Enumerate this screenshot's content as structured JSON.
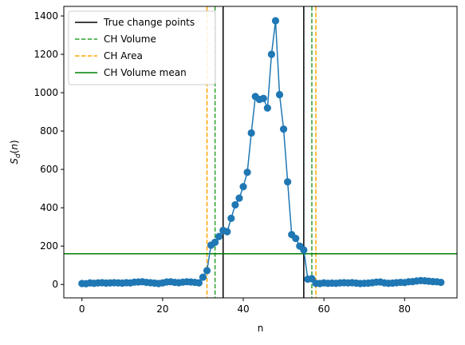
{
  "chart_data": {
    "type": "line",
    "xlabel": "n",
    "ylabel": "S_d(n)",
    "xlim": [
      -4.5,
      93
    ],
    "ylim": [
      -70,
      1450
    ],
    "xticks": [
      0,
      20,
      40,
      60,
      80
    ],
    "yticks": [
      0,
      200,
      400,
      600,
      800,
      1000,
      1200,
      1400
    ],
    "grid": false,
    "legend_position": "top-left",
    "series": [
      {
        "color": "#1f77b4",
        "marker": "circle",
        "x": [
          0,
          1,
          2,
          3,
          4,
          5,
          6,
          7,
          8,
          9,
          10,
          11,
          12,
          13,
          14,
          15,
          16,
          17,
          18,
          19,
          20,
          21,
          22,
          23,
          24,
          25,
          26,
          27,
          28,
          29,
          30,
          31,
          32,
          33,
          34,
          35,
          36,
          37,
          38,
          39,
          40,
          41,
          42,
          43,
          44,
          45,
          46,
          47,
          48,
          49,
          50,
          51,
          52,
          53,
          54,
          55,
          56,
          57,
          58,
          59,
          60,
          61,
          62,
          63,
          64,
          65,
          66,
          67,
          68,
          69,
          70,
          71,
          72,
          73,
          74,
          75,
          76,
          77,
          78,
          79,
          80,
          81,
          82,
          83,
          84,
          85,
          86,
          87,
          88,
          89
        ],
        "y": [
          5,
          4,
          8,
          6,
          8,
          9,
          7,
          8,
          9,
          8,
          7,
          9,
          8,
          12,
          13,
          14,
          11,
          9,
          7,
          5,
          8,
          13,
          14,
          11,
          9,
          12,
          14,
          13,
          11,
          8,
          38,
          72,
          205,
          220,
          250,
          282,
          275,
          345,
          415,
          450,
          510,
          585,
          790,
          980,
          965,
          970,
          920,
          1200,
          1375,
          990,
          810,
          535,
          260,
          240,
          200,
          180,
          28,
          30,
          6,
          5,
          8,
          6,
          7,
          6,
          8,
          9,
          8,
          9,
          7,
          5,
          6,
          7,
          9,
          12,
          13,
          8,
          6,
          7,
          9,
          11,
          10,
          14,
          15,
          18,
          20,
          19,
          17,
          15,
          14,
          11
        ]
      }
    ],
    "vlines": [
      {
        "x": 35,
        "color": "#000000",
        "style": "solid",
        "label": "True change points"
      },
      {
        "x": 55,
        "color": "#000000",
        "style": "solid"
      },
      {
        "x": 33,
        "color": "#2ca02c",
        "style": "dashed",
        "label": "CH Volume"
      },
      {
        "x": 57,
        "color": "#2ca02c",
        "style": "dashed"
      },
      {
        "x": 31,
        "color": "#ffa500",
        "style": "dashed",
        "label": "CH Area"
      },
      {
        "x": 58,
        "color": "#ffa500",
        "style": "dashed"
      }
    ],
    "hlines": [
      {
        "y": 160,
        "color": "#008000",
        "style": "solid",
        "label": "CH Volume mean"
      }
    ],
    "legend": [
      {
        "label": "True change points",
        "color": "#000000",
        "style": "solid"
      },
      {
        "label": "CH Volume",
        "color": "#2ca02c",
        "style": "dashed"
      },
      {
        "label": "CH Area",
        "color": "#ffa500",
        "style": "dashed"
      },
      {
        "label": "CH Volume mean",
        "color": "#008000",
        "style": "solid"
      }
    ]
  }
}
